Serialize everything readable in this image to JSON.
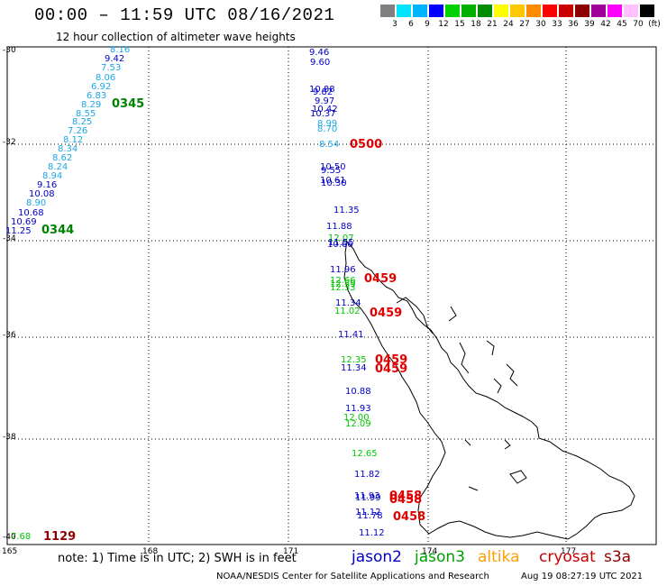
{
  "title": "00:00 – 11:59 UTC 08/16/2021",
  "subtitle": "12 hour collection of altimeter wave heights",
  "scale": {
    "colors": [
      "#808080",
      "#00e5ff",
      "#00b4ff",
      "#0000ff",
      "#00d200",
      "#00b000",
      "#008c00",
      "#ffff00",
      "#ffc800",
      "#ff8c00",
      "#ff0000",
      "#c80000",
      "#8c0000",
      "#a0009a",
      "#ff00ff",
      "#ffc0ff",
      "#000000"
    ],
    "labels": [
      "3",
      "6",
      "9",
      "12",
      "15",
      "18",
      "21",
      "24",
      "27",
      "30",
      "33",
      "36",
      "39",
      "42",
      "45",
      "70",
      "(ft)"
    ]
  },
  "axes": {
    "lat_labels": [
      "-30",
      "-32",
      "-34",
      "-36",
      "-38",
      "-40"
    ],
    "lon_labels": [
      "165",
      "168",
      "171",
      "174",
      "177"
    ]
  },
  "tracks": {
    "t1": [
      "8.16",
      "9.42",
      "7.53",
      "8.06",
      "6.92",
      "6.83",
      "8.29",
      "8.55",
      "8.25",
      "7.26",
      "8.12",
      "8.34",
      "8.62",
      "8.24",
      "8.94",
      "9.16",
      "10.08",
      "8.90",
      "10.68",
      "10.69",
      "11.25"
    ],
    "t2": [
      "9.46",
      "9.60",
      "10.88",
      "9.82",
      "9.97",
      "10.42",
      "10.37",
      "8.99",
      "8.70",
      "8.54",
      "10.50",
      "9.55",
      "10.61",
      "10.30",
      "11.35",
      "11.88",
      "12.07",
      "11.55",
      "10.66",
      "11.96",
      "12.66",
      "12.59",
      "12.33",
      "11.34",
      "11.02",
      "11.41",
      "12.35",
      "11.34",
      "10.88",
      "11.93",
      "12.00",
      "12.09",
      "12.65",
      "11.82",
      "11.93",
      "11.99",
      "11.12",
      "11.78",
      "11.12"
    ],
    "t3": [
      "7.68"
    ]
  },
  "times": [
    "0345",
    "0344",
    "0500",
    "0459",
    "0459",
    "0459",
    "0459",
    "0458",
    "0458",
    "0458",
    "1129"
  ],
  "note": "note:  1) Time is in UTC;  2) SWH is in feet",
  "satellites": [
    {
      "name": "jason2",
      "color": "#0000c8"
    },
    {
      "name": "jason3",
      "color": "#00a000"
    },
    {
      "name": "altika",
      "color": "#ffa000"
    },
    {
      "name": "cryosat",
      "color": "#c80000"
    },
    {
      "name": "s3a",
      "color": "#8c0000"
    }
  ],
  "footer": "NOAA/NESDIS Center for Satellite Applications and Research",
  "timestamp": "Aug 19 08:27:19 UTC 2021"
}
